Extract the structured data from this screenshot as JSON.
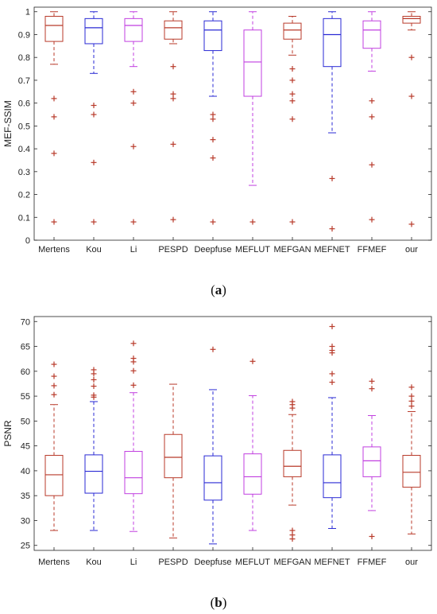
{
  "colors": {
    "red": "#b83a2a",
    "blue": "#2a2ad4",
    "purple": "#c13fe0",
    "outlier": "#b83a2a",
    "axis": "#222222"
  },
  "chart_data": [
    {
      "type": "box",
      "caption": "(a)",
      "caption_parts": [
        "(",
        "a",
        ")"
      ],
      "ylabel": "MEF-SSIM",
      "ylim": [
        0,
        1.02
      ],
      "yticks": [
        0,
        0.1,
        0.2,
        0.3,
        0.4,
        0.5,
        0.6,
        0.7,
        0.8,
        0.9,
        1
      ],
      "ytick_labels": [
        "0",
        "0.1",
        "0.2",
        "0.3",
        "0.4",
        "0.5",
        "0.6",
        "0.7",
        "0.8",
        "0.9",
        "1"
      ],
      "categories": [
        "Mertens",
        "Kou",
        "Li",
        "PESPD",
        "Deepfuse",
        "MEFLUT",
        "MEFGAN",
        "MEFNET",
        "FFMEF",
        "our"
      ],
      "series_colors": [
        "red",
        "blue",
        "purple",
        "red",
        "blue",
        "purple",
        "red",
        "blue",
        "purple",
        "red"
      ],
      "boxes": [
        {
          "whisker_low": 0.77,
          "q1": 0.87,
          "median": 0.94,
          "q3": 0.98,
          "whisker_high": 1.0,
          "outliers": [
            0.62,
            0.54,
            0.38,
            0.08
          ]
        },
        {
          "whisker_low": 0.73,
          "q1": 0.86,
          "median": 0.93,
          "q3": 0.97,
          "whisker_high": 1.0,
          "outliers": [
            0.59,
            0.55,
            0.34,
            0.08
          ]
        },
        {
          "whisker_low": 0.76,
          "q1": 0.87,
          "median": 0.94,
          "q3": 0.97,
          "whisker_high": 1.0,
          "outliers": [
            0.65,
            0.6,
            0.41,
            0.08
          ]
        },
        {
          "whisker_low": 0.86,
          "q1": 0.88,
          "median": 0.93,
          "q3": 0.96,
          "whisker_high": 1.0,
          "outliers": [
            0.76,
            0.64,
            0.62,
            0.42,
            0.09
          ]
        },
        {
          "whisker_low": 0.63,
          "q1": 0.83,
          "median": 0.92,
          "q3": 0.96,
          "whisker_high": 1.0,
          "outliers": [
            0.55,
            0.53,
            0.44,
            0.36,
            0.08
          ]
        },
        {
          "whisker_low": 0.24,
          "q1": 0.63,
          "median": 0.78,
          "q3": 0.92,
          "whisker_high": 1.0,
          "outliers": [
            0.08
          ]
        },
        {
          "whisker_low": 0.81,
          "q1": 0.88,
          "median": 0.92,
          "q3": 0.95,
          "whisker_high": 0.98,
          "outliers": [
            0.75,
            0.7,
            0.64,
            0.61,
            0.53,
            0.08
          ]
        },
        {
          "whisker_low": 0.47,
          "q1": 0.76,
          "median": 0.9,
          "q3": 0.97,
          "whisker_high": 1.0,
          "outliers": [
            0.27,
            0.05
          ]
        },
        {
          "whisker_low": 0.74,
          "q1": 0.84,
          "median": 0.92,
          "q3": 0.96,
          "whisker_high": 1.0,
          "outliers": [
            0.61,
            0.54,
            0.33,
            0.09
          ]
        },
        {
          "whisker_low": 0.92,
          "q1": 0.95,
          "median": 0.97,
          "q3": 0.98,
          "whisker_high": 1.0,
          "outliers": [
            0.8,
            0.63,
            0.07
          ]
        }
      ]
    },
    {
      "type": "box",
      "caption": "(b)",
      "caption_parts": [
        "(",
        "b",
        ")"
      ],
      "ylabel": "PSNR",
      "ylim": [
        24,
        71
      ],
      "yticks": [
        25,
        30,
        35,
        40,
        45,
        50,
        55,
        60,
        65,
        70
      ],
      "ytick_labels": [
        "25",
        "30",
        "35",
        "40",
        "45",
        "50",
        "55",
        "60",
        "65",
        "70"
      ],
      "categories": [
        "Mertens",
        "Kou",
        "Li",
        "PESPD",
        "Deepfuse",
        "MEFLUT",
        "MEFGAN",
        "MEFNET",
        "FFMEF",
        "our"
      ],
      "series_colors": [
        "red",
        "blue",
        "purple",
        "red",
        "blue",
        "purple",
        "red",
        "blue",
        "purple",
        "red"
      ],
      "boxes": [
        {
          "whisker_low": 28.0,
          "q1": 35.0,
          "median": 39.2,
          "q3": 43.1,
          "whisker_high": 53.3,
          "outliers": [
            61.4,
            59.0,
            57.1,
            55.3
          ]
        },
        {
          "whisker_low": 28.0,
          "q1": 35.5,
          "median": 39.9,
          "q3": 43.2,
          "whisker_high": 53.9,
          "outliers": [
            60.3,
            59.5,
            58.3,
            57.0,
            55.2,
            54.8
          ]
        },
        {
          "whisker_low": 27.8,
          "q1": 35.4,
          "median": 38.6,
          "q3": 43.9,
          "whisker_high": 55.7,
          "outliers": [
            65.6,
            62.6,
            61.9,
            60.1,
            57.2
          ]
        },
        {
          "whisker_low": 26.5,
          "q1": 38.6,
          "median": 42.7,
          "q3": 47.3,
          "whisker_high": 57.4,
          "outliers": []
        },
        {
          "whisker_low": 25.3,
          "q1": 34.1,
          "median": 37.6,
          "q3": 43.0,
          "whisker_high": 56.3,
          "outliers": [
            64.4
          ]
        },
        {
          "whisker_low": 28.0,
          "q1": 35.3,
          "median": 38.8,
          "q3": 43.4,
          "whisker_high": 55.1,
          "outliers": [
            62.0
          ]
        },
        {
          "whisker_low": 33.1,
          "q1": 38.8,
          "median": 40.9,
          "q3": 44.1,
          "whisker_high": 51.3,
          "outliers": [
            53.9,
            53.3,
            52.6,
            28.0,
            27.1,
            26.3
          ]
        },
        {
          "whisker_low": 28.4,
          "q1": 34.6,
          "median": 37.6,
          "q3": 43.2,
          "whisker_high": 54.7,
          "outliers": [
            69.0,
            65.0,
            64.2,
            63.7,
            59.5,
            57.8
          ]
        },
        {
          "whisker_low": 32.0,
          "q1": 38.8,
          "median": 42.0,
          "q3": 44.8,
          "whisker_high": 51.1,
          "outliers": [
            58.0,
            56.5,
            26.8
          ]
        },
        {
          "whisker_low": 27.3,
          "q1": 36.7,
          "median": 39.7,
          "q3": 43.1,
          "whisker_high": 51.9,
          "outliers": [
            56.8,
            55.0,
            54.0,
            53.0
          ]
        }
      ]
    }
  ]
}
